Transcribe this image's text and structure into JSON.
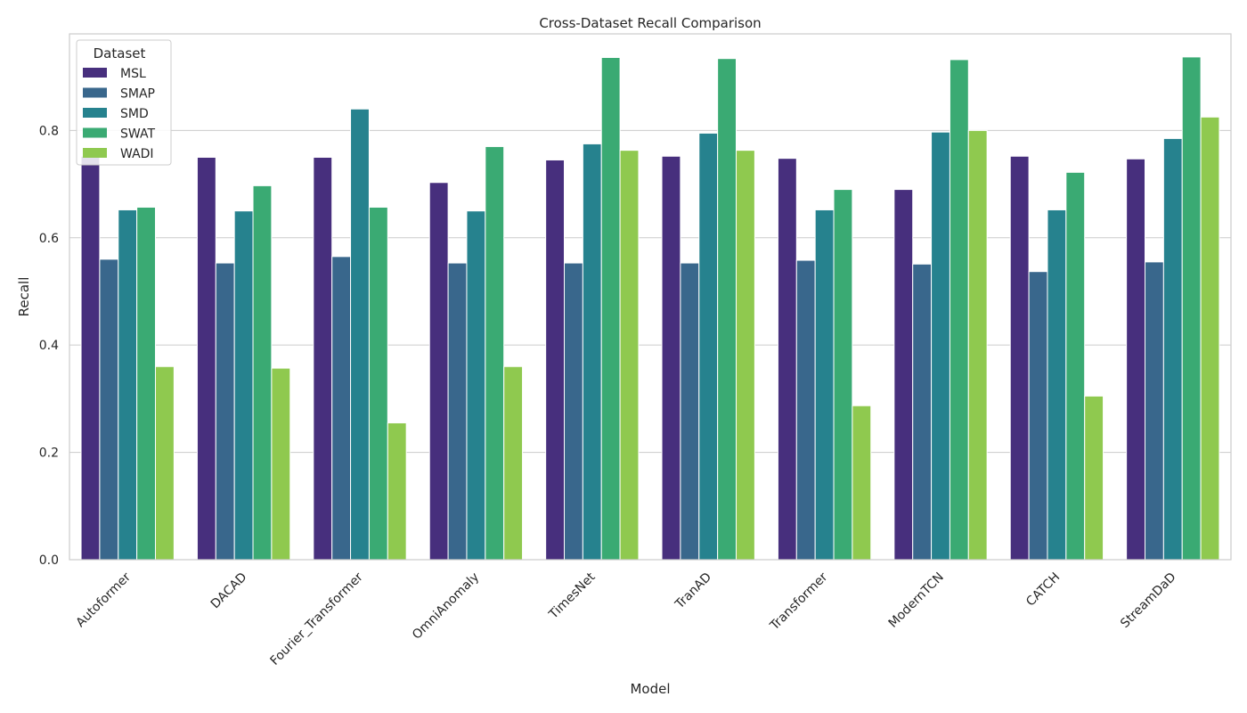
{
  "chart_data": {
    "type": "bar",
    "title": "Cross-Dataset Recall Comparison",
    "xlabel": "Model",
    "ylabel": "Recall",
    "ylim": [
      0,
      0.98
    ],
    "yticks": [
      "0.0",
      "0.2",
      "0.4",
      "0.6",
      "0.8"
    ],
    "grid": true,
    "legend_title": "Dataset",
    "legend_position": "top-left",
    "categories": [
      "Autoformer",
      "DACAD",
      "Fourier_Transformer",
      "OmniAnomaly",
      "TimesNet",
      "TranAD",
      "Transformer",
      "ModernTCN",
      "CATCH",
      "StreamDaD"
    ],
    "series": [
      {
        "name": "MSL",
        "color": "#472f7d",
        "values": [
          0.752,
          0.75,
          0.75,
          0.703,
          0.745,
          0.752,
          0.748,
          0.69,
          0.752,
          0.747
        ]
      },
      {
        "name": "SMAP",
        "color": "#39678c",
        "values": [
          0.56,
          0.553,
          0.565,
          0.553,
          0.553,
          0.553,
          0.558,
          0.551,
          0.537,
          0.555
        ]
      },
      {
        "name": "SMD",
        "color": "#26828e",
        "values": [
          0.652,
          0.65,
          0.84,
          0.65,
          0.775,
          0.795,
          0.652,
          0.797,
          0.652,
          0.785
        ]
      },
      {
        "name": "SWAT",
        "color": "#3aaa73",
        "values": [
          0.657,
          0.697,
          0.657,
          0.77,
          0.936,
          0.934,
          0.69,
          0.932,
          0.722,
          0.937
        ]
      },
      {
        "name": "WADI",
        "color": "#8fc94f",
        "values": [
          0.36,
          0.357,
          0.255,
          0.36,
          0.763,
          0.763,
          0.287,
          0.8,
          0.305,
          0.825
        ]
      }
    ]
  }
}
